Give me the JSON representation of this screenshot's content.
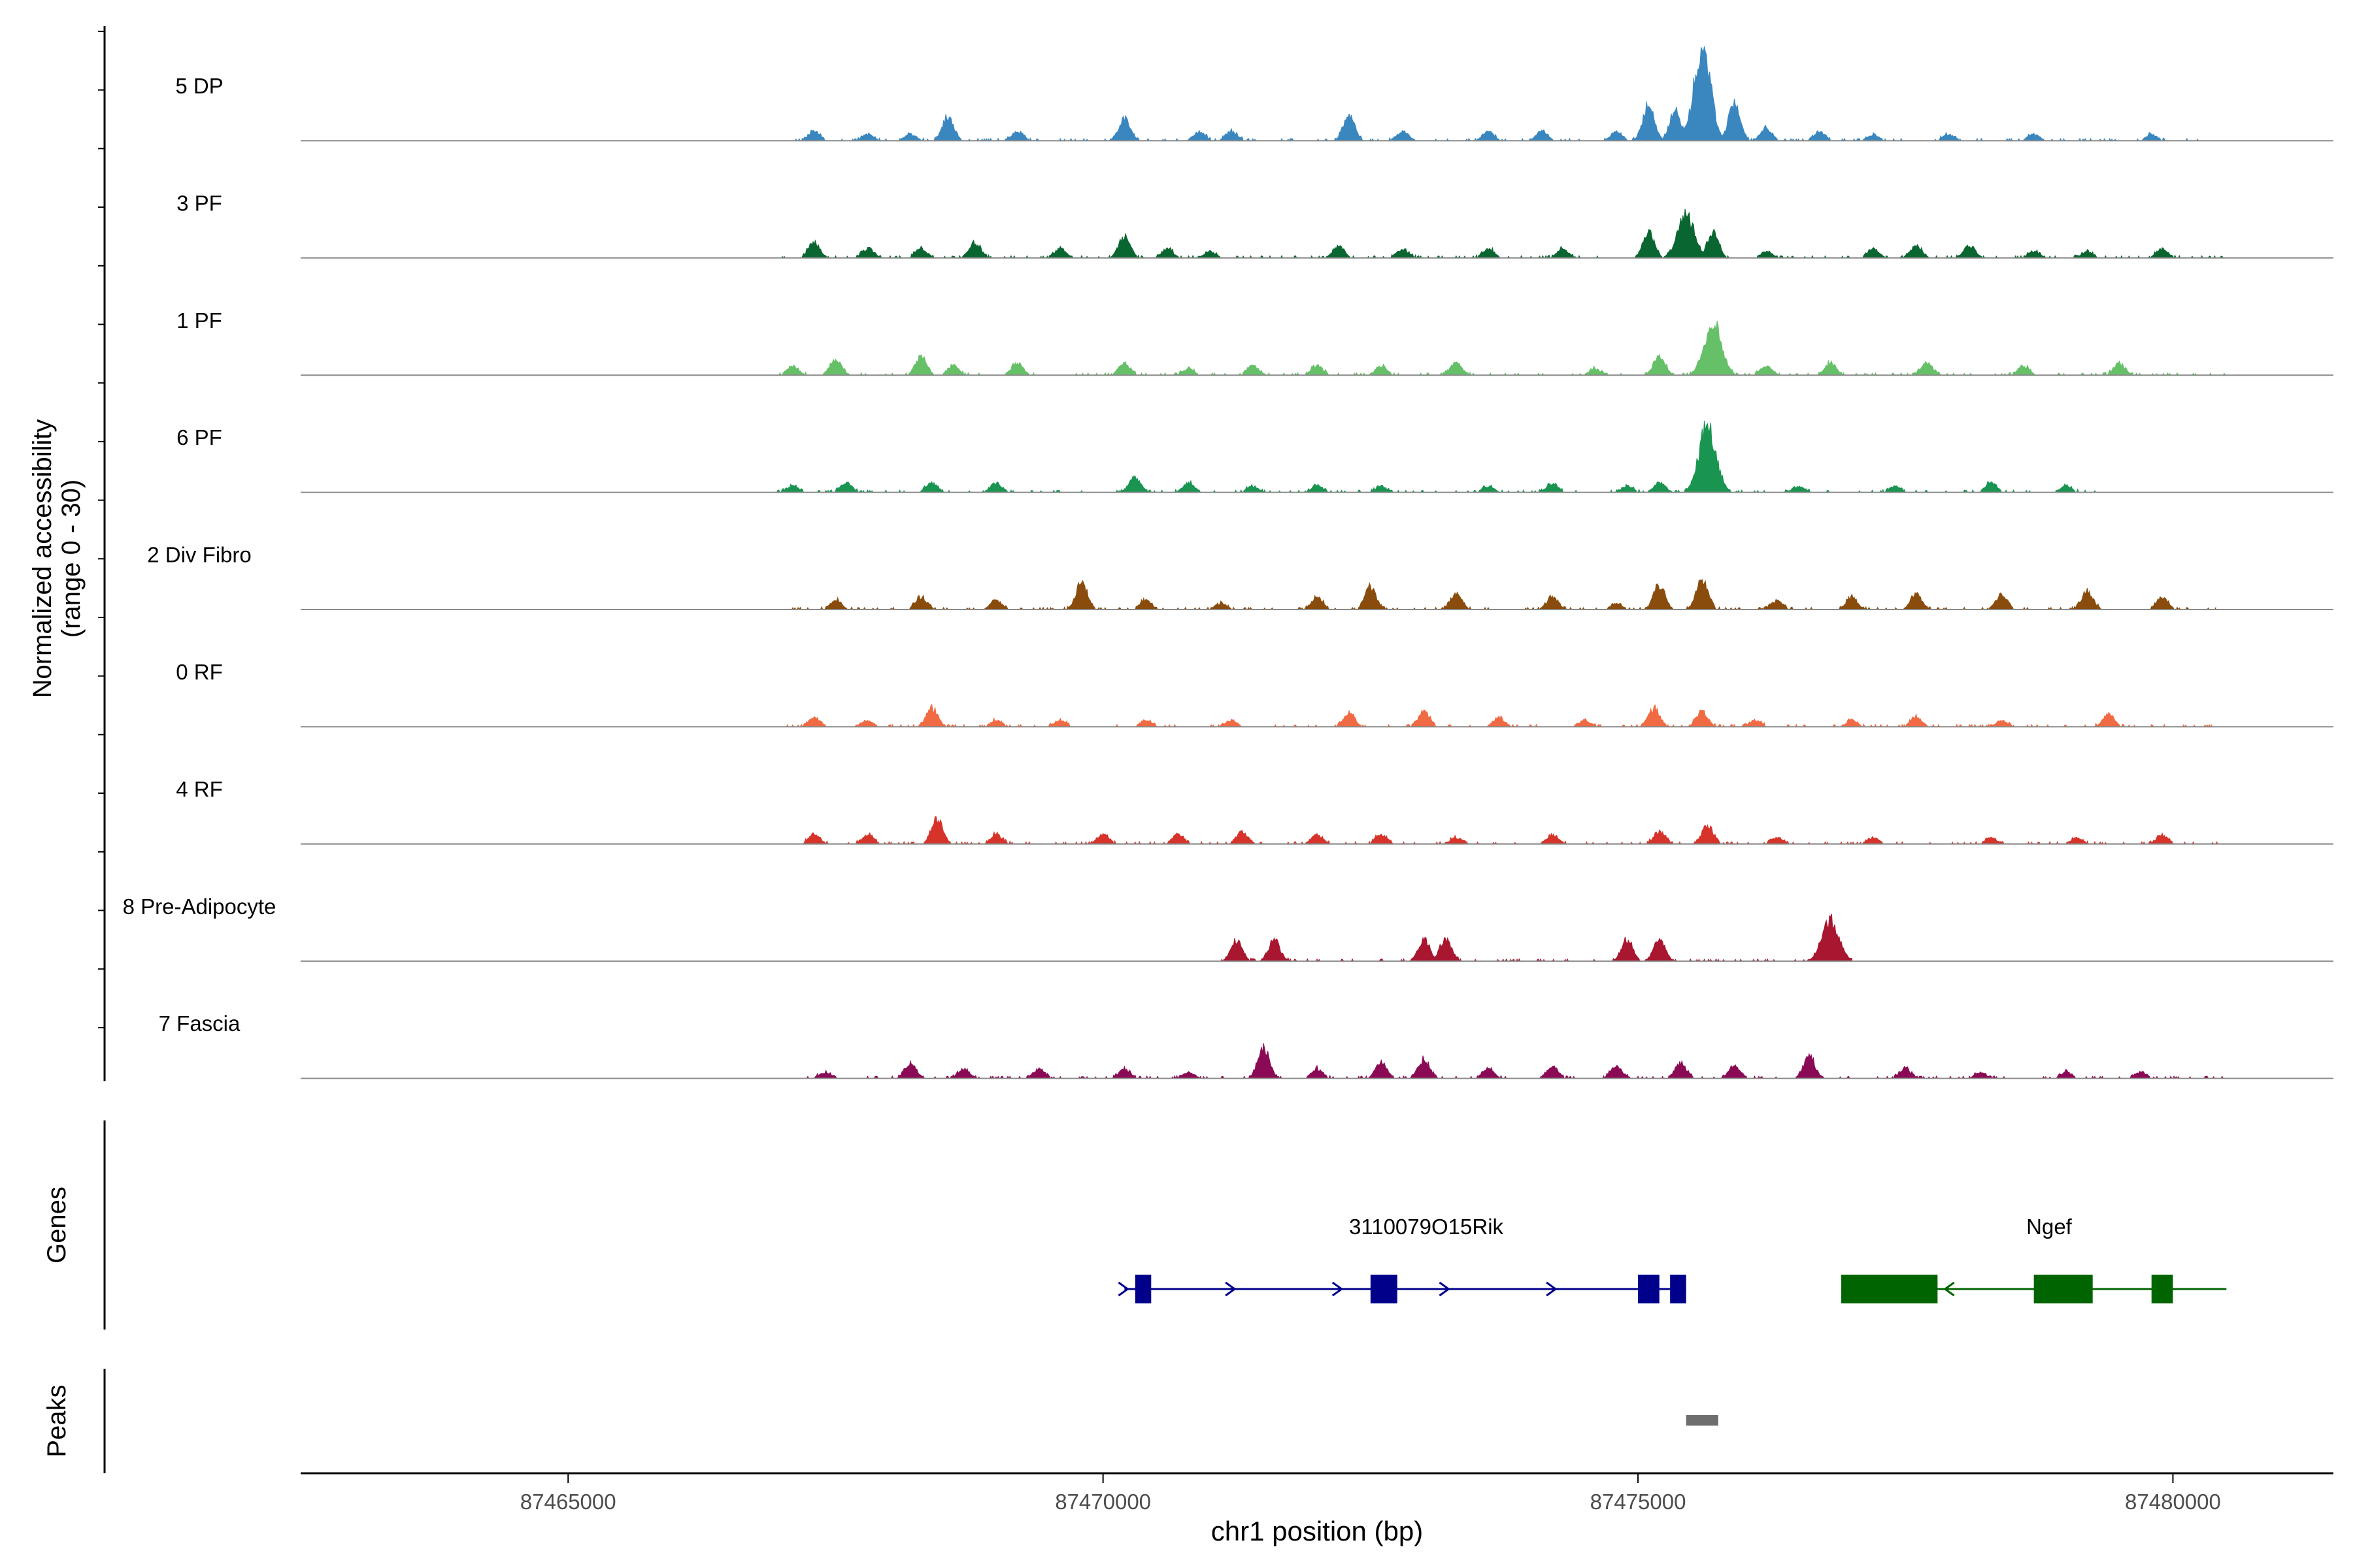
{
  "chart_data": {
    "type": "area",
    "title": "",
    "xlabel": "chr1 position (bp)",
    "ylabel_line1": "Normalized accessibility",
    "ylabel_line2": "(range 0 - 30)",
    "xlim": [
      87462500,
      87481500
    ],
    "xticks": [
      87465000,
      87470000,
      87475000,
      87480000
    ],
    "xtick_labels": [
      "87465000",
      "87470000",
      "87475000",
      "87480000"
    ],
    "ylim_per_track": [
      0,
      30
    ],
    "tracks": [
      {
        "name": "5 DP",
        "color": "#3a87c0",
        "start": 87467000,
        "end": 87480500,
        "peaks": [
          [
            87467300,
            3
          ],
          [
            87467800,
            2
          ],
          [
            87468200,
            2
          ],
          [
            87468550,
            8
          ],
          [
            87469200,
            3
          ],
          [
            87470200,
            7
          ],
          [
            87470900,
            3
          ],
          [
            87471200,
            3
          ],
          [
            87472300,
            8
          ],
          [
            87472800,
            3
          ],
          [
            87473600,
            3
          ],
          [
            87474100,
            3
          ],
          [
            87474800,
            3
          ],
          [
            87475100,
            12
          ],
          [
            87475350,
            10
          ],
          [
            87475600,
            30
          ],
          [
            87475900,
            12
          ],
          [
            87476200,
            4
          ],
          [
            87476700,
            3
          ],
          [
            87477200,
            2
          ],
          [
            87477900,
            2
          ],
          [
            87478700,
            2
          ],
          [
            87479800,
            2
          ]
        ]
      },
      {
        "name": "3 PF",
        "color": "#0a6631",
        "start": 87467000,
        "end": 87480500,
        "peaks": [
          [
            87467300,
            5
          ],
          [
            87467800,
            3
          ],
          [
            87468300,
            3
          ],
          [
            87468800,
            5
          ],
          [
            87469600,
            3
          ],
          [
            87470200,
            7
          ],
          [
            87470600,
            3
          ],
          [
            87471000,
            2
          ],
          [
            87472200,
            4
          ],
          [
            87472800,
            3
          ],
          [
            87473600,
            3
          ],
          [
            87474300,
            3
          ],
          [
            87475100,
            8
          ],
          [
            87475450,
            14
          ],
          [
            87475700,
            8
          ],
          [
            87476200,
            2
          ],
          [
            87477200,
            3
          ],
          [
            87477600,
            4
          ],
          [
            87478100,
            4
          ],
          [
            87478700,
            2
          ],
          [
            87479200,
            2
          ],
          [
            87479900,
            3
          ]
        ]
      },
      {
        "name": "1 PF",
        "color": "#66c068",
        "start": 87466900,
        "end": 87480500,
        "peaks": [
          [
            87467100,
            3
          ],
          [
            87467500,
            5
          ],
          [
            87468300,
            6
          ],
          [
            87468600,
            3
          ],
          [
            87469200,
            4
          ],
          [
            87470200,
            4
          ],
          [
            87470800,
            2
          ],
          [
            87471400,
            3
          ],
          [
            87472000,
            3
          ],
          [
            87472600,
            3
          ],
          [
            87473300,
            4
          ],
          [
            87474600,
            2
          ],
          [
            87475200,
            6
          ],
          [
            87475700,
            17
          ],
          [
            87476200,
            3
          ],
          [
            87476800,
            4
          ],
          [
            87477700,
            4
          ],
          [
            87478600,
            3
          ],
          [
            87479500,
            4
          ]
        ]
      },
      {
        "name": "6 PF",
        "color": "#1a9451",
        "start": 87466900,
        "end": 87479300,
        "peaks": [
          [
            87467100,
            2
          ],
          [
            87467600,
            3
          ],
          [
            87468400,
            3
          ],
          [
            87469000,
            3
          ],
          [
            87470300,
            5
          ],
          [
            87470800,
            3
          ],
          [
            87471400,
            2
          ],
          [
            87472000,
            2
          ],
          [
            87472600,
            2
          ],
          [
            87473600,
            2
          ],
          [
            87474200,
            3
          ],
          [
            87474900,
            2
          ],
          [
            87475200,
            3
          ],
          [
            87475650,
            22
          ],
          [
            87476500,
            2
          ],
          [
            87477400,
            2
          ],
          [
            87478300,
            3
          ],
          [
            87479000,
            2
          ]
        ]
      },
      {
        "name": "2 Div Fibro",
        "color": "#8a4c0c",
        "start": 87466900,
        "end": 87480400,
        "peaks": [
          [
            87467500,
            3
          ],
          [
            87468300,
            4
          ],
          [
            87469000,
            3
          ],
          [
            87469800,
            9
          ],
          [
            87470400,
            3
          ],
          [
            87471100,
            2
          ],
          [
            87472000,
            4
          ],
          [
            87472500,
            7
          ],
          [
            87473300,
            5
          ],
          [
            87474200,
            4
          ],
          [
            87474800,
            2
          ],
          [
            87475200,
            8
          ],
          [
            87475600,
            10
          ],
          [
            87476300,
            3
          ],
          [
            87477000,
            4
          ],
          [
            87477600,
            5
          ],
          [
            87478400,
            5
          ],
          [
            87479200,
            6
          ],
          [
            87479900,
            4
          ]
        ]
      },
      {
        "name": "0 RF",
        "color": "#f06a43",
        "start": 87467000,
        "end": 87480500,
        "peaks": [
          [
            87467300,
            3
          ],
          [
            87467800,
            2
          ],
          [
            87468400,
            6
          ],
          [
            87469000,
            2
          ],
          [
            87469600,
            2
          ],
          [
            87470400,
            2
          ],
          [
            87471200,
            2
          ],
          [
            87472300,
            4
          ],
          [
            87473000,
            5
          ],
          [
            87473700,
            3
          ],
          [
            87474500,
            2
          ],
          [
            87475150,
            6
          ],
          [
            87475600,
            5
          ],
          [
            87476100,
            2
          ],
          [
            87477000,
            2
          ],
          [
            87477600,
            3
          ],
          [
            87478400,
            2
          ],
          [
            87479400,
            4
          ]
        ]
      },
      {
        "name": "4 RF",
        "color": "#d6332a",
        "start": 87467000,
        "end": 87480500,
        "peaks": [
          [
            87467300,
            3
          ],
          [
            87467800,
            3
          ],
          [
            87468450,
            8
          ],
          [
            87469000,
            3
          ],
          [
            87470000,
            3
          ],
          [
            87470700,
            3
          ],
          [
            87471300,
            4
          ],
          [
            87472000,
            3
          ],
          [
            87472600,
            3
          ],
          [
            87473300,
            2
          ],
          [
            87474200,
            3
          ],
          [
            87475200,
            4
          ],
          [
            87475650,
            6
          ],
          [
            87476300,
            2
          ],
          [
            87477200,
            2
          ],
          [
            87478300,
            2
          ],
          [
            87479100,
            2
          ],
          [
            87479900,
            3
          ]
        ]
      },
      {
        "name": "8 Pre-Adipocyte",
        "color": "#a8162f",
        "start": 87471100,
        "end": 87477000,
        "peaks": [
          [
            87471250,
            7
          ],
          [
            87471600,
            7
          ],
          [
            87473000,
            7
          ],
          [
            87473200,
            7
          ],
          [
            87474900,
            7
          ],
          [
            87475200,
            7
          ],
          [
            87476800,
            13
          ]
        ]
      },
      {
        "name": "7 Fascia",
        "color": "#8b0a55",
        "start": 87467200,
        "end": 87480500,
        "peaks": [
          [
            87467400,
            2
          ],
          [
            87468200,
            5
          ],
          [
            87468700,
            3
          ],
          [
            87469400,
            3
          ],
          [
            87470200,
            3
          ],
          [
            87470800,
            2
          ],
          [
            87471500,
            10
          ],
          [
            87472000,
            3
          ],
          [
            87472600,
            5
          ],
          [
            87473000,
            6
          ],
          [
            87473600,
            3
          ],
          [
            87474200,
            4
          ],
          [
            87474800,
            4
          ],
          [
            87475400,
            5
          ],
          [
            87475900,
            4
          ],
          [
            87476600,
            7
          ],
          [
            87477500,
            3
          ],
          [
            87478200,
            2
          ],
          [
            87479000,
            2
          ],
          [
            87479700,
            2
          ]
        ]
      }
    ],
    "genes_label": "Genes",
    "peaks_label": "Peaks",
    "genes": [
      {
        "name": "3110079O15Rik",
        "color": "#00008b",
        "start": 87470200,
        "end": 87475450,
        "strand": "+",
        "exons": [
          [
            87470300,
            87470450
          ],
          [
            87472500,
            87472750
          ],
          [
            87475000,
            87475200
          ],
          [
            87475300,
            87475450
          ]
        ],
        "arrows": [
          87470200,
          87471200,
          87472200,
          87473200,
          87474200,
          87475100
        ]
      },
      {
        "name": "Ngef",
        "color": "#006400",
        "start": 87476900,
        "end": 87480500,
        "strand": "-",
        "exons": [
          [
            87476900,
            87477800
          ],
          [
            87478700,
            87479250
          ],
          [
            87479800,
            87480000
          ]
        ],
        "arrows": [
          87477900
        ]
      }
    ],
    "peak_regions": [
      [
        87475450,
        87475750
      ]
    ]
  }
}
